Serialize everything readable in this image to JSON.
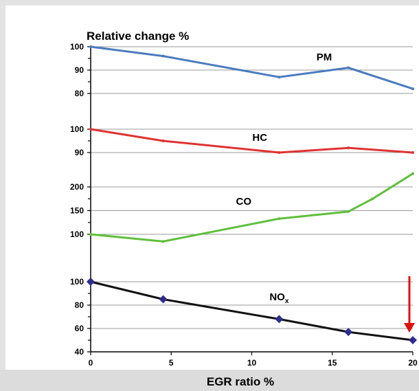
{
  "chart_data": {
    "type": "line",
    "title": "Relative change %",
    "xlabel": "EGR ratio %",
    "xlim": [
      0,
      20
    ],
    "x_ticks": [
      0,
      5,
      10,
      15,
      20
    ],
    "grid": true,
    "panels": [
      {
        "name": "PM",
        "color": "#4a7bbf",
        "ylim": [
          80,
          100
        ],
        "y_ticks": [
          100,
          90,
          80
        ],
        "markers": false,
        "x": [
          0,
          4.5,
          11.7,
          16,
          20
        ],
        "values": [
          100,
          96,
          87,
          91,
          82
        ]
      },
      {
        "name": "HC",
        "color": "#e03232",
        "ylim": [
          90,
          100
        ],
        "y_ticks": [
          100,
          90
        ],
        "markers": false,
        "x": [
          0,
          4.5,
          11.7,
          16,
          20
        ],
        "values": [
          100,
          95,
          90,
          92,
          90
        ]
      },
      {
        "name": "CO",
        "color": "#5fbf3a",
        "ylim": [
          100,
          200
        ],
        "y_ticks": [
          200,
          150,
          100
        ],
        "markers": false,
        "x": [
          0,
          4.5,
          11.7,
          16,
          17.5,
          20
        ],
        "values": [
          100,
          85,
          133,
          148,
          175,
          228
        ]
      },
      {
        "name": "NO",
        "subscript": "x",
        "color": "#111111",
        "marker_color": "#2e2e8f",
        "ylim": [
          40,
          100
        ],
        "y_ticks": [
          100,
          80,
          60,
          40
        ],
        "markers": true,
        "x": [
          0,
          4.5,
          11.7,
          16,
          20
        ],
        "values": [
          100,
          85,
          68,
          57,
          50
        ]
      }
    ],
    "annotations": [
      {
        "type": "arrow",
        "color": "#e01010",
        "x": 20,
        "panel": "NO"
      }
    ]
  }
}
